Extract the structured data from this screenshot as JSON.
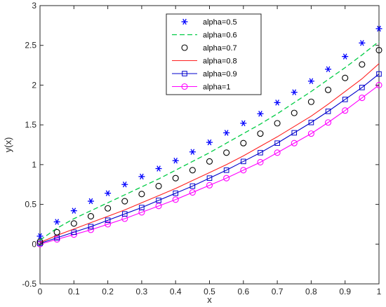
{
  "chart_data": {
    "type": "line",
    "title": "",
    "xlabel": "x",
    "ylabel": "y(x)",
    "xlim": [
      0,
      1
    ],
    "ylim": [
      -0.5,
      3
    ],
    "xticks": [
      0,
      0.1,
      0.2,
      0.3,
      0.4,
      0.5,
      0.6,
      0.7,
      0.8,
      0.9,
      1
    ],
    "xtick_labels": [
      "0",
      "0.1",
      "0.2",
      "0.3",
      "0.4",
      "0.5",
      "0.6",
      "0.7",
      "0.8",
      "0.9",
      "1"
    ],
    "yticks": [
      -0.5,
      0,
      0.5,
      1,
      1.5,
      2,
      2.5,
      3
    ],
    "ytick_labels": [
      "-0.5",
      "0",
      "0.5",
      "1",
      "1.5",
      "2",
      "2.5",
      "3"
    ],
    "grid": false,
    "legend_position": "top-center",
    "x": [
      0,
      0.05,
      0.1,
      0.15,
      0.2,
      0.25,
      0.3,
      0.35,
      0.4,
      0.45,
      0.5,
      0.55,
      0.6,
      0.65,
      0.7,
      0.75,
      0.8,
      0.85,
      0.9,
      0.95,
      1
    ],
    "series": [
      {
        "name": "alpha=0.5",
        "style": "marker",
        "marker": "asterisk",
        "color": "#0000ff",
        "values": [
          0.1,
          0.28,
          0.42,
          0.54,
          0.64,
          0.75,
          0.85,
          0.95,
          1.05,
          1.16,
          1.28,
          1.4,
          1.52,
          1.64,
          1.78,
          1.91,
          2.05,
          2.2,
          2.36,
          2.53,
          2.71
        ]
      },
      {
        "name": "alpha=0.6",
        "style": "dashed",
        "color": "#00cc44",
        "values": [
          0.05,
          0.2,
          0.32,
          0.42,
          0.52,
          0.62,
          0.72,
          0.82,
          0.93,
          1.04,
          1.15,
          1.27,
          1.39,
          1.51,
          1.64,
          1.78,
          1.92,
          2.07,
          2.22,
          2.38,
          2.55
        ]
      },
      {
        "name": "alpha=0.7",
        "style": "marker",
        "marker": "circle",
        "color": "#000000",
        "values": [
          0.03,
          0.15,
          0.26,
          0.35,
          0.45,
          0.54,
          0.63,
          0.73,
          0.83,
          0.93,
          1.04,
          1.15,
          1.27,
          1.39,
          1.52,
          1.65,
          1.79,
          1.94,
          2.09,
          2.26,
          2.44
        ]
      },
      {
        "name": "alpha=0.8",
        "style": "solid",
        "color": "#ff2020",
        "values": [
          0.02,
          0.11,
          0.19,
          0.27,
          0.35,
          0.43,
          0.52,
          0.61,
          0.7,
          0.8,
          0.9,
          1.0,
          1.11,
          1.23,
          1.35,
          1.48,
          1.61,
          1.76,
          1.92,
          2.08,
          2.27
        ]
      },
      {
        "name": "alpha=0.9",
        "style": "line-marker",
        "marker": "square",
        "color": "#0000cc",
        "values": [
          0.01,
          0.08,
          0.15,
          0.22,
          0.3,
          0.38,
          0.46,
          0.55,
          0.64,
          0.73,
          0.83,
          0.93,
          1.04,
          1.15,
          1.27,
          1.4,
          1.53,
          1.67,
          1.82,
          1.97,
          2.14
        ]
      },
      {
        "name": "alpha=1",
        "style": "line-marker",
        "marker": "circle",
        "color": "#ff00ff",
        "values": [
          0.0,
          0.06,
          0.12,
          0.18,
          0.25,
          0.32,
          0.4,
          0.48,
          0.56,
          0.65,
          0.74,
          0.83,
          0.93,
          1.03,
          1.15,
          1.27,
          1.39,
          1.53,
          1.68,
          1.84,
          2.0
        ]
      }
    ]
  }
}
